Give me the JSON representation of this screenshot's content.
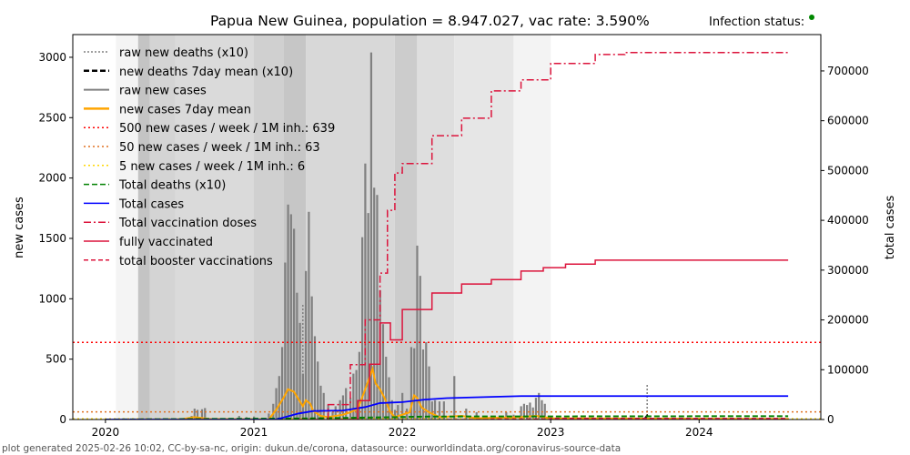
{
  "header": {
    "title": "Papua New Guinea, population = 8.947.027, vac rate: 3.590%",
    "infection_status_label": "Infection status:",
    "infection_status_color": "#008000"
  },
  "footer": "plot generated 2025-02-26 10:02, CC-by-sa-nc, origin: dukun.de/corona, datasource: ourworldindata.org/coronavirus-source-data",
  "chart_data": {
    "type": "bar",
    "title": "Papua New Guinea, population = 8.947.027, vac rate: 3.590%",
    "xlabel": "",
    "ylabel": "new cases",
    "y2label": "total cases",
    "xlim": [
      2019.78,
      2024.82
    ],
    "ylim": [
      0,
      3188
    ],
    "y2lim": [
      0,
      773000
    ],
    "xticks": [
      "2020",
      "2021",
      "2022",
      "2023",
      "2024"
    ],
    "yticks": [
      0,
      500,
      1000,
      1500,
      2000,
      2500,
      3000
    ],
    "y2ticks": [
      0,
      100000,
      200000,
      300000,
      400000,
      500000,
      600000,
      700000
    ],
    "legend_position": "top-left",
    "legend": [
      {
        "label": "raw new deaths (x10)",
        "color": "#808080",
        "dash": "2,2",
        "w": 1.5
      },
      {
        "label": "new deaths 7day mean (x10)",
        "color": "#000000",
        "dash": "6,3",
        "w": 2.5
      },
      {
        "label": "raw new cases",
        "color": "#808080",
        "dash": "",
        "w": 2
      },
      {
        "label": "new cases 7day mean",
        "color": "#ffa500",
        "dash": "",
        "w": 2.5
      },
      {
        "label": "500 new cases / week / 1M inh.: 639",
        "color": "#ff0000",
        "dash": "2,3",
        "w": 1.5
      },
      {
        "label": "50 new cases / week / 1M inh.: 63",
        "color": "#e07020",
        "dash": "2,3",
        "w": 1.5
      },
      {
        "label": "5 new cases / week / 1M inh.: 6",
        "color": "#ffd700",
        "dash": "2,3",
        "w": 1.5
      },
      {
        "label": "Total deaths (x10)",
        "color": "#008000",
        "dash": "6,3",
        "w": 1.5
      },
      {
        "label": "Total cases",
        "color": "#0000ff",
        "dash": "",
        "w": 1.5
      },
      {
        "label": "Total vaccination doses",
        "color": "#dc143c",
        "dash": "8,3,2,3",
        "w": 1.5
      },
      {
        "label": "fully vaccinated",
        "color": "#dc143c",
        "dash": "",
        "w": 1.5
      },
      {
        "label": "total booster vaccinations",
        "color": "#dc143c",
        "dash": "5,3",
        "w": 1.5
      }
    ],
    "thresholds": [
      {
        "value": 639,
        "color": "#ff0000"
      },
      {
        "value": 63,
        "color": "#e07020"
      },
      {
        "value": 6,
        "color": "#ffd700"
      }
    ],
    "background_bands": [
      [
        2020.07,
        2020.22,
        "#f4f4f4"
      ],
      [
        2020.22,
        2020.3,
        "#c4c4c4"
      ],
      [
        2020.3,
        2020.47,
        "#d4d4d4"
      ],
      [
        2020.47,
        2021.0,
        "#dadada"
      ],
      [
        2021.0,
        2021.2,
        "#d0d0d0"
      ],
      [
        2021.2,
        2021.35,
        "#c6c6c6"
      ],
      [
        2021.35,
        2021.95,
        "#d8d8d8"
      ],
      [
        2021.95,
        2022.1,
        "#cccccc"
      ],
      [
        2022.1,
        2022.35,
        "#dedede"
      ],
      [
        2022.35,
        2022.75,
        "#e6e6e6"
      ],
      [
        2022.75,
        2023.0,
        "#f3f3f3"
      ]
    ],
    "raw_new_cases": [
      [
        2020.58,
        30
      ],
      [
        2020.6,
        90
      ],
      [
        2020.62,
        80
      ],
      [
        2020.65,
        85
      ],
      [
        2020.67,
        95
      ],
      [
        2020.9,
        30
      ],
      [
        2020.95,
        20
      ],
      [
        2021.0,
        25
      ],
      [
        2021.1,
        50
      ],
      [
        2021.13,
        130
      ],
      [
        2021.15,
        260
      ],
      [
        2021.17,
        360
      ],
      [
        2021.19,
        600
      ],
      [
        2021.21,
        1300
      ],
      [
        2021.23,
        1780
      ],
      [
        2021.25,
        1700
      ],
      [
        2021.27,
        1580
      ],
      [
        2021.29,
        1050
      ],
      [
        2021.31,
        800
      ],
      [
        2021.33,
        380
      ],
      [
        2021.35,
        1230
      ],
      [
        2021.37,
        1720
      ],
      [
        2021.39,
        1020
      ],
      [
        2021.41,
        690
      ],
      [
        2021.43,
        480
      ],
      [
        2021.45,
        280
      ],
      [
        2021.47,
        220
      ],
      [
        2021.5,
        120
      ],
      [
        2021.53,
        60
      ],
      [
        2021.55,
        110
      ],
      [
        2021.58,
        160
      ],
      [
        2021.6,
        200
      ],
      [
        2021.62,
        260
      ],
      [
        2021.65,
        180
      ],
      [
        2021.67,
        380
      ],
      [
        2021.69,
        410
      ],
      [
        2021.71,
        560
      ],
      [
        2021.73,
        1510
      ],
      [
        2021.75,
        2120
      ],
      [
        2021.77,
        1710
      ],
      [
        2021.79,
        3040
      ],
      [
        2021.81,
        1920
      ],
      [
        2021.83,
        1860
      ],
      [
        2021.85,
        1070
      ],
      [
        2021.87,
        790
      ],
      [
        2021.89,
        520
      ],
      [
        2021.91,
        350
      ],
      [
        2021.93,
        160
      ],
      [
        2021.95,
        80
      ],
      [
        2021.97,
        120
      ],
      [
        2022.0,
        220
      ],
      [
        2022.03,
        90
      ],
      [
        2022.06,
        600
      ],
      [
        2022.08,
        590
      ],
      [
        2022.1,
        1440
      ],
      [
        2022.12,
        1190
      ],
      [
        2022.14,
        580
      ],
      [
        2022.16,
        640
      ],
      [
        2022.18,
        440
      ],
      [
        2022.2,
        150
      ],
      [
        2022.22,
        160
      ],
      [
        2022.25,
        150
      ],
      [
        2022.28,
        150
      ],
      [
        2022.35,
        360
      ],
      [
        2022.43,
        90
      ],
      [
        2022.5,
        60
      ],
      [
        2022.7,
        60
      ],
      [
        2022.75,
        40
      ],
      [
        2022.8,
        110
      ],
      [
        2022.82,
        130
      ],
      [
        2022.84,
        120
      ],
      [
        2022.86,
        140
      ],
      [
        2022.88,
        100
      ],
      [
        2022.9,
        180
      ],
      [
        2022.92,
        220
      ],
      [
        2022.94,
        160
      ],
      [
        2022.96,
        130
      ],
      [
        2023.0,
        20
      ]
    ],
    "new_cases_7day_mean": [
      [
        2020.5,
        0
      ],
      [
        2020.6,
        20
      ],
      [
        2020.7,
        5
      ],
      [
        2021.1,
        0
      ],
      [
        2021.15,
        80
      ],
      [
        2021.2,
        180
      ],
      [
        2021.23,
        250
      ],
      [
        2021.27,
        230
      ],
      [
        2021.3,
        170
      ],
      [
        2021.33,
        110
      ],
      [
        2021.35,
        160
      ],
      [
        2021.38,
        130
      ],
      [
        2021.4,
        70
      ],
      [
        2021.45,
        30
      ],
      [
        2021.5,
        20
      ],
      [
        2021.6,
        40
      ],
      [
        2021.65,
        60
      ],
      [
        2021.7,
        90
      ],
      [
        2021.72,
        150
      ],
      [
        2021.75,
        250
      ],
      [
        2021.8,
        420
      ],
      [
        2021.82,
        300
      ],
      [
        2021.85,
        250
      ],
      [
        2021.88,
        180
      ],
      [
        2021.92,
        60
      ],
      [
        2021.95,
        20
      ],
      [
        2022.0,
        40
      ],
      [
        2022.05,
        60
      ],
      [
        2022.08,
        200
      ],
      [
        2022.1,
        180
      ],
      [
        2022.13,
        100
      ],
      [
        2022.18,
        60
      ],
      [
        2022.25,
        20
      ],
      [
        2022.4,
        30
      ],
      [
        2022.5,
        10
      ],
      [
        2022.8,
        20
      ],
      [
        2022.9,
        30
      ],
      [
        2023.0,
        10
      ],
      [
        2024.6,
        5
      ]
    ],
    "raw_new_deaths_x10": [
      [
        2021.33,
        950
      ],
      [
        2023.65,
        290
      ]
    ],
    "new_deaths_7day_mean_x10": [
      [
        2023.63,
        0
      ],
      [
        2023.65,
        30
      ],
      [
        2023.67,
        0
      ]
    ],
    "total_cases": [
      [
        2020.0,
        0
      ],
      [
        2021.15,
        0
      ],
      [
        2021.3,
        12000
      ],
      [
        2021.4,
        17000
      ],
      [
        2021.6,
        18000
      ],
      [
        2021.75,
        25000
      ],
      [
        2021.85,
        33000
      ],
      [
        2022.0,
        35000
      ],
      [
        2022.15,
        40000
      ],
      [
        2022.3,
        43000
      ],
      [
        2022.8,
        47000
      ],
      [
        2024.6,
        47000
      ]
    ],
    "total_deaths_x10": [
      [
        2020.0,
        0
      ],
      [
        2021.3,
        2000
      ],
      [
        2021.8,
        4000
      ],
      [
        2022.2,
        6000
      ],
      [
        2024.6,
        6700
      ]
    ],
    "total_vaccination_doses": [
      [
        2021.3,
        0
      ],
      [
        2021.5,
        30000
      ],
      [
        2021.65,
        110000
      ],
      [
        2021.75,
        200000
      ],
      [
        2021.85,
        294000
      ],
      [
        2021.9,
        420000
      ],
      [
        2021.95,
        495000
      ],
      [
        2022.0,
        514000
      ],
      [
        2022.2,
        570000
      ],
      [
        2022.4,
        605000
      ],
      [
        2022.6,
        660000
      ],
      [
        2022.8,
        682000
      ],
      [
        2023.0,
        715000
      ],
      [
        2023.3,
        733000
      ],
      [
        2023.5,
        737000
      ],
      [
        2024.6,
        737000
      ]
    ],
    "fully_vaccinated": [
      [
        2021.55,
        0
      ],
      [
        2021.7,
        38000
      ],
      [
        2021.78,
        111000
      ],
      [
        2021.85,
        194000
      ],
      [
        2021.9,
        194000
      ],
      [
        2021.92,
        160000
      ],
      [
        2022.0,
        221000
      ],
      [
        2022.2,
        254000
      ],
      [
        2022.4,
        272000
      ],
      [
        2022.6,
        281000
      ],
      [
        2022.8,
        298000
      ],
      [
        2022.95,
        305000
      ],
      [
        2023.1,
        312000
      ],
      [
        2023.3,
        320000
      ],
      [
        2024.6,
        320000
      ]
    ],
    "total_booster_vaccinations": [
      [
        2022.3,
        0
      ],
      [
        2022.6,
        1000
      ],
      [
        2023.0,
        2000
      ],
      [
        2024.6,
        2000
      ]
    ]
  }
}
